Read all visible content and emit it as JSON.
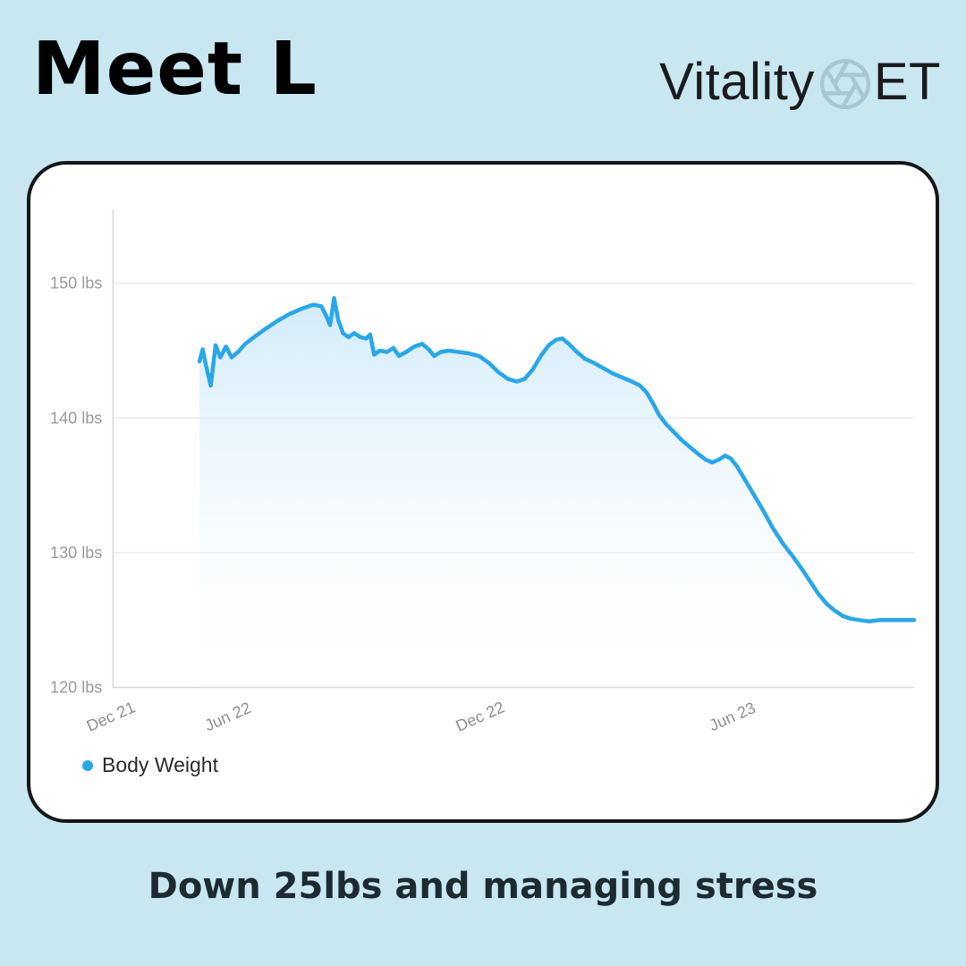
{
  "page": {
    "title": "Meet L",
    "caption": "Down 25lbs and managing stress",
    "bg_color": "#c9e7f1"
  },
  "logo": {
    "prefix": "Vitality",
    "suffix": "ET",
    "icon": "aperture-icon",
    "icon_color": "#a9c7d3",
    "text_color": "#1b1b1d"
  },
  "chart_data": {
    "type": "area",
    "title": "",
    "xlabel": "",
    "ylabel": "",
    "ylim": [
      120,
      154
    ],
    "grid": true,
    "legend_position": "bottom-left",
    "accent_color": "#2aa7e8",
    "area_fill_top": "#cfeafb",
    "area_fill_bottom": "#ffffff",
    "y_ticks": [
      {
        "label": "150 lbs",
        "value": 150
      },
      {
        "label": "140 lbs",
        "value": 140
      },
      {
        "label": "130 lbs",
        "value": 130
      },
      {
        "label": "120 lbs",
        "value": 120
      }
    ],
    "x_ticks": [
      {
        "label": "Dec 21",
        "f": 0.0
      },
      {
        "label": "Jun 22",
        "f": 0.146
      },
      {
        "label": "Dec 22",
        "f": 0.461
      },
      {
        "label": "Jun 23",
        "f": 0.776
      }
    ],
    "legend": [
      {
        "label": "Body Weight",
        "color": "#2aa7e8"
      }
    ],
    "series": [
      {
        "name": "Body Weight",
        "color": "#2aa7e8",
        "points": [
          [
            0.108,
            144.2
          ],
          [
            0.112,
            145.1
          ],
          [
            0.116,
            143.9
          ],
          [
            0.122,
            142.4
          ],
          [
            0.128,
            145.4
          ],
          [
            0.134,
            144.5
          ],
          [
            0.141,
            145.3
          ],
          [
            0.148,
            144.5
          ],
          [
            0.156,
            144.9
          ],
          [
            0.165,
            145.5
          ],
          [
            0.176,
            146.0
          ],
          [
            0.19,
            146.6
          ],
          [
            0.205,
            147.2
          ],
          [
            0.22,
            147.7
          ],
          [
            0.235,
            148.1
          ],
          [
            0.25,
            148.4
          ],
          [
            0.26,
            148.3
          ],
          [
            0.266,
            147.6
          ],
          [
            0.271,
            146.9
          ],
          [
            0.276,
            148.9
          ],
          [
            0.281,
            147.3
          ],
          [
            0.287,
            146.3
          ],
          [
            0.294,
            146.0
          ],
          [
            0.301,
            146.3
          ],
          [
            0.309,
            146.0
          ],
          [
            0.316,
            145.9
          ],
          [
            0.321,
            146.2
          ],
          [
            0.326,
            144.7
          ],
          [
            0.333,
            145.0
          ],
          [
            0.342,
            144.9
          ],
          [
            0.35,
            145.2
          ],
          [
            0.357,
            144.6
          ],
          [
            0.366,
            144.9
          ],
          [
            0.376,
            145.3
          ],
          [
            0.386,
            145.5
          ],
          [
            0.394,
            145.1
          ],
          [
            0.401,
            144.6
          ],
          [
            0.409,
            144.9
          ],
          [
            0.419,
            145.0
          ],
          [
            0.431,
            144.9
          ],
          [
            0.444,
            144.8
          ],
          [
            0.457,
            144.6
          ],
          [
            0.469,
            144.1
          ],
          [
            0.481,
            143.4
          ],
          [
            0.493,
            142.9
          ],
          [
            0.504,
            142.7
          ],
          [
            0.514,
            142.9
          ],
          [
            0.524,
            143.6
          ],
          [
            0.534,
            144.6
          ],
          [
            0.544,
            145.4
          ],
          [
            0.553,
            145.8
          ],
          [
            0.561,
            145.9
          ],
          [
            0.569,
            145.5
          ],
          [
            0.579,
            144.9
          ],
          [
            0.589,
            144.4
          ],
          [
            0.6,
            144.1
          ],
          [
            0.612,
            143.7
          ],
          [
            0.624,
            143.3
          ],
          [
            0.636,
            143.0
          ],
          [
            0.648,
            142.7
          ],
          [
            0.658,
            142.4
          ],
          [
            0.666,
            141.9
          ],
          [
            0.674,
            141.1
          ],
          [
            0.682,
            140.2
          ],
          [
            0.691,
            139.5
          ],
          [
            0.701,
            138.9
          ],
          [
            0.711,
            138.3
          ],
          [
            0.721,
            137.8
          ],
          [
            0.731,
            137.3
          ],
          [
            0.74,
            136.9
          ],
          [
            0.748,
            136.7
          ],
          [
            0.756,
            136.9
          ],
          [
            0.764,
            137.2
          ],
          [
            0.771,
            137.0
          ],
          [
            0.779,
            136.4
          ],
          [
            0.789,
            135.4
          ],
          [
            0.799,
            134.4
          ],
          [
            0.811,
            133.2
          ],
          [
            0.823,
            131.9
          ],
          [
            0.836,
            130.7
          ],
          [
            0.849,
            129.7
          ],
          [
            0.861,
            128.7
          ],
          [
            0.871,
            127.8
          ],
          [
            0.881,
            126.9
          ],
          [
            0.891,
            126.2
          ],
          [
            0.901,
            125.7
          ],
          [
            0.911,
            125.3
          ],
          [
            0.921,
            125.1
          ],
          [
            0.931,
            125.0
          ],
          [
            0.944,
            124.9
          ],
          [
            0.958,
            125.0
          ],
          [
            0.972,
            125.0
          ],
          [
            0.986,
            125.0
          ],
          [
            1.0,
            125.0
          ]
        ]
      }
    ]
  }
}
